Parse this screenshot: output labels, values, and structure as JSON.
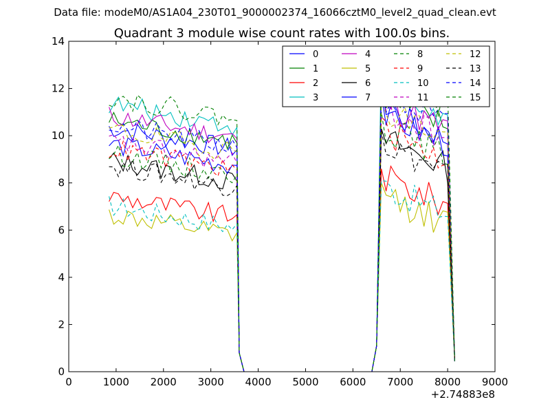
{
  "colors": {
    "0": "#0000ff",
    "1": "#008000",
    "2": "#ff0000",
    "3": "#00bfbf",
    "4": "#bf00bf",
    "5": "#bfbf00",
    "6": "#000000",
    "7": "#0000ff",
    "8": "#008000",
    "9": "#ff0000",
    "10": "#00bfbf",
    "11": "#bf00bf",
    "12": "#bfbf00",
    "13": "#000000",
    "14": "#0000ff",
    "15": "#008000"
  },
  "chart_data": {
    "type": "line",
    "suptitle": "Data file: modeM0/AS1A04_230T01_9000002374_16066cztM0_level2_quad_clean.evt",
    "title": "Quadrant 3 module wise count rates with 100.0s bins.",
    "xlabel": "",
    "ylabel": "",
    "x_offset_label": "+2.74883e8",
    "xlim": [
      0,
      9000
    ],
    "ylim": [
      0,
      14
    ],
    "xticks": [
      0,
      1000,
      2000,
      3000,
      4000,
      5000,
      6000,
      7000,
      8000,
      9000
    ],
    "yticks": [
      0,
      2,
      4,
      6,
      8,
      10,
      12,
      14
    ],
    "x_tick_labels": [
      "0",
      "1000",
      "2000",
      "3000",
      "4000",
      "5000",
      "6000",
      "7000",
      "8000",
      "9000"
    ],
    "y_tick_labels": [
      "0",
      "2",
      "4",
      "6",
      "8",
      "10",
      "12",
      "14"
    ],
    "legend": {
      "placement": "top-right",
      "columns": 4,
      "entries": [
        "0",
        "1",
        "2",
        "3",
        "4",
        "5",
        "6",
        "7",
        "8",
        "9",
        "10",
        "11",
        "12",
        "13",
        "14",
        "15"
      ]
    },
    "segments": {
      "seg1_x": [
        850,
        3450
      ],
      "seg1_step": 100,
      "seg2_x": [
        6550,
        8150
      ],
      "seg2_step": 100,
      "gap_x": [
        3650,
        6450
      ]
    },
    "series": [
      {
        "name": "0",
        "style": "solid",
        "level1": 9.9,
        "level2": 10.2,
        "peak": 12.2
      },
      {
        "name": "1",
        "style": "solid",
        "level1": 10.2,
        "level2": 10.7,
        "peak": 12.8
      },
      {
        "name": "2",
        "style": "solid",
        "level1": 7.0,
        "level2": 7.4,
        "peak": 8.6
      },
      {
        "name": "3",
        "style": "solid",
        "level1": 10.9,
        "level2": 11.0,
        "peak": 13.6
      },
      {
        "name": "4",
        "style": "solid",
        "level1": 10.4,
        "level2": 10.6,
        "peak": 12.6
      },
      {
        "name": "5",
        "style": "solid",
        "level1": 6.2,
        "level2": 6.6,
        "peak": 8.0
      },
      {
        "name": "6",
        "style": "solid",
        "level1": 8.5,
        "level2": 9.0,
        "peak": 10.3
      },
      {
        "name": "7",
        "style": "solid",
        "level1": 9.2,
        "level2": 10.0,
        "peak": 11.8
      },
      {
        "name": "8",
        "style": "dashed",
        "level1": 8.8,
        "level2": 9.5,
        "peak": 11.0
      },
      {
        "name": "9",
        "style": "dashed",
        "level1": 9.0,
        "level2": 9.3,
        "peak": 10.8
      },
      {
        "name": "10",
        "style": "dashed",
        "level1": 6.6,
        "level2": 7.0,
        "peak": 8.1
      },
      {
        "name": "11",
        "style": "dashed",
        "level1": 9.3,
        "level2": 10.2,
        "peak": 12.2
      },
      {
        "name": "12",
        "style": "dashed",
        "level1": 9.8,
        "level2": 10.3,
        "peak": 11.6
      },
      {
        "name": "13",
        "style": "dashed",
        "level1": 8.3,
        "level2": 8.8,
        "peak": 10.2
      },
      {
        "name": "14",
        "style": "dashed",
        "level1": 10.0,
        "level2": 10.8,
        "peak": 12.3
      },
      {
        "name": "15",
        "style": "dashed",
        "level1": 11.2,
        "level2": 11.6,
        "peak": 12.7
      }
    ]
  }
}
